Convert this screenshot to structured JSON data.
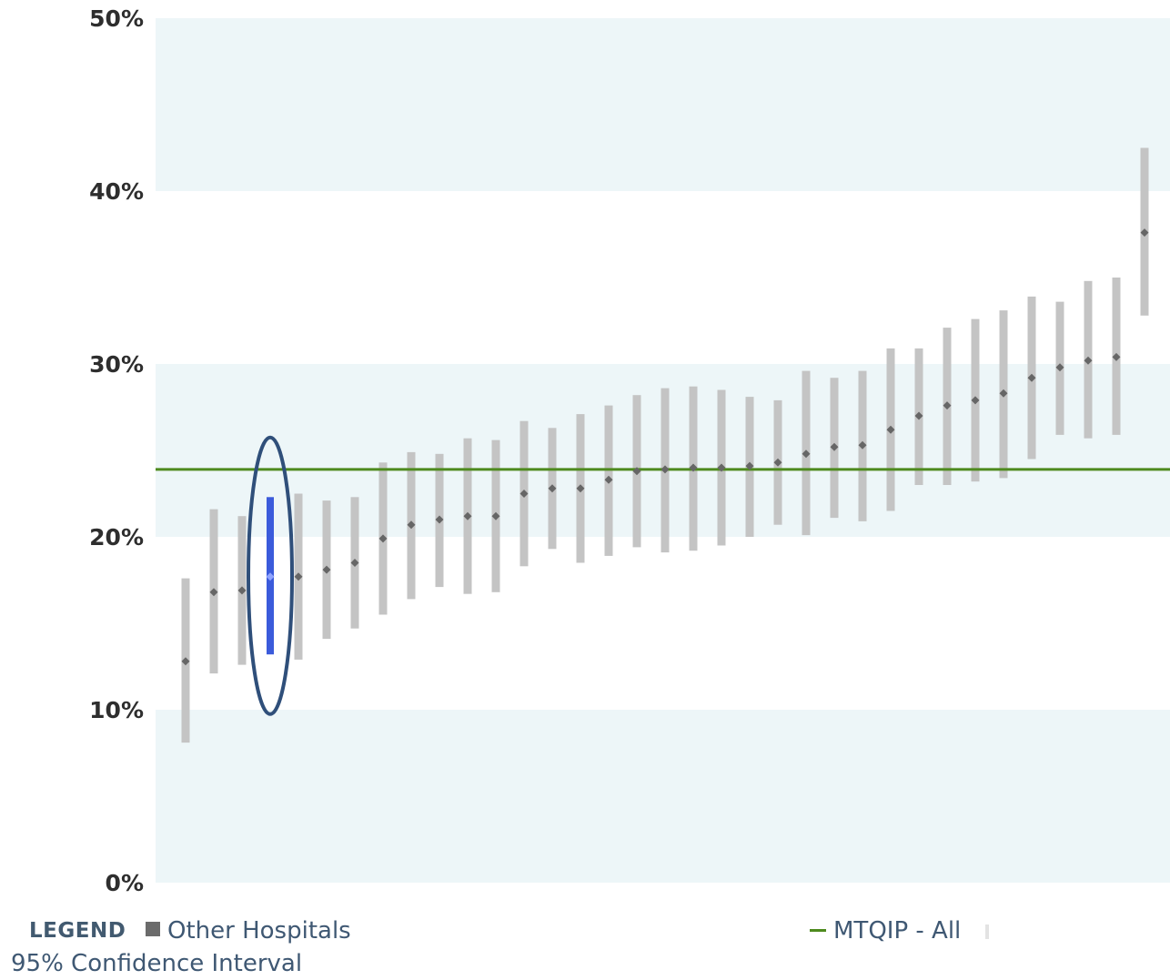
{
  "chart_data": {
    "type": "scatter",
    "subtype": "ranked-point-with-confidence-interval",
    "y_ticks": [
      "0%",
      "10%",
      "20%",
      "30%",
      "40%",
      "50%"
    ],
    "ylim": [
      0,
      50
    ],
    "y_unit": "%",
    "banded_background": true,
    "grid": false,
    "reference_line": {
      "name": "MTQIP - All",
      "value": 23.9,
      "color": "#4e8a1e"
    },
    "highlighted_index": 3,
    "highlight_color": "#3b5bdb",
    "ellipse_color": "#2f4f7a",
    "ci_color": "#c4c4c4",
    "point_color": "#666666",
    "series": [
      {
        "name": "Other Hospitals",
        "points": [
          {
            "value": 12.8,
            "low": 8.1,
            "high": 17.6
          },
          {
            "value": 16.8,
            "low": 12.1,
            "high": 21.6
          },
          {
            "value": 16.9,
            "low": 12.6,
            "high": 21.2
          },
          {
            "value": 17.7,
            "low": 13.2,
            "high": 22.3
          },
          {
            "value": 17.7,
            "low": 12.9,
            "high": 22.5
          },
          {
            "value": 18.1,
            "low": 14.1,
            "high": 22.1
          },
          {
            "value": 18.5,
            "low": 14.7,
            "high": 22.3
          },
          {
            "value": 19.9,
            "low": 15.5,
            "high": 24.3
          },
          {
            "value": 20.7,
            "low": 16.4,
            "high": 24.9
          },
          {
            "value": 21.0,
            "low": 17.1,
            "high": 24.8
          },
          {
            "value": 21.2,
            "low": 16.7,
            "high": 25.7
          },
          {
            "value": 21.2,
            "low": 16.8,
            "high": 25.6
          },
          {
            "value": 22.5,
            "low": 18.3,
            "high": 26.7
          },
          {
            "value": 22.8,
            "low": 19.3,
            "high": 26.3
          },
          {
            "value": 22.8,
            "low": 18.5,
            "high": 27.1
          },
          {
            "value": 23.3,
            "low": 18.9,
            "high": 27.6
          },
          {
            "value": 23.8,
            "low": 19.4,
            "high": 28.2
          },
          {
            "value": 23.9,
            "low": 19.1,
            "high": 28.6
          },
          {
            "value": 24.0,
            "low": 19.2,
            "high": 28.7
          },
          {
            "value": 24.0,
            "low": 19.5,
            "high": 28.5
          },
          {
            "value": 24.1,
            "low": 20.0,
            "high": 28.1
          },
          {
            "value": 24.3,
            "low": 20.7,
            "high": 27.9
          },
          {
            "value": 24.8,
            "low": 20.1,
            "high": 29.6
          },
          {
            "value": 25.2,
            "low": 21.1,
            "high": 29.2
          },
          {
            "value": 25.3,
            "low": 20.9,
            "high": 29.6
          },
          {
            "value": 26.2,
            "low": 21.5,
            "high": 30.9
          },
          {
            "value": 27.0,
            "low": 23.0,
            "high": 30.9
          },
          {
            "value": 27.6,
            "low": 23.0,
            "high": 32.1
          },
          {
            "value": 27.9,
            "low": 23.2,
            "high": 32.6
          },
          {
            "value": 28.3,
            "low": 23.4,
            "high": 33.1
          },
          {
            "value": 29.2,
            "low": 24.5,
            "high": 33.9
          },
          {
            "value": 29.8,
            "low": 25.9,
            "high": 33.6
          },
          {
            "value": 30.2,
            "low": 25.7,
            "high": 34.8
          },
          {
            "value": 30.4,
            "low": 25.9,
            "high": 35.0
          },
          {
            "value": 37.6,
            "low": 32.8,
            "high": 42.5
          }
        ]
      }
    ]
  },
  "legend": {
    "title": "LEGEND",
    "other_hospitals": "Other Hospitals",
    "reference_label": "MTQIP - All",
    "ci_label": "95% Confidence Interval"
  }
}
